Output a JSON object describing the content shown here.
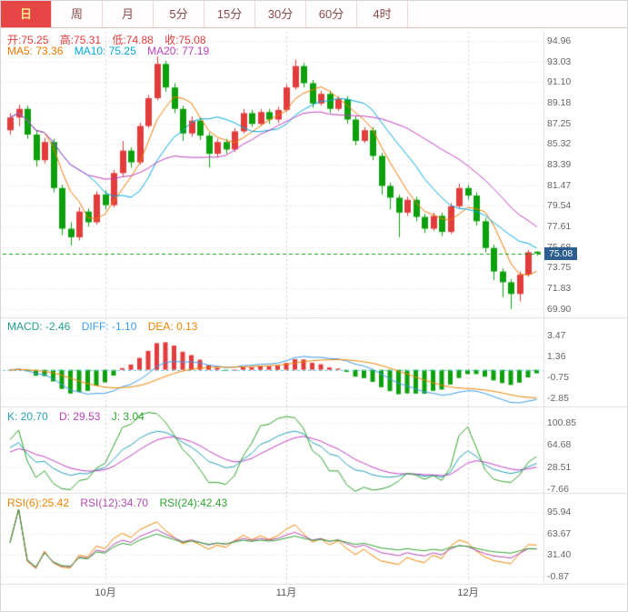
{
  "colors": {
    "up": "#e23c3c",
    "down": "#0ca00c",
    "ohlc_text": "#e23c3c",
    "ma5": "#f07800",
    "ma10": "#00aadf",
    "ma20": "#c03fc0",
    "macd_label": "#23a08c",
    "diff": "#3b9ded",
    "dea": "#f08300",
    "k": "#23a0b4",
    "dline": "#c03fc0",
    "j": "#2fa32f",
    "rsi6": "#f08300",
    "rsi12": "#b44ab4",
    "rsi24": "#2fa32f",
    "close_line": "#0ca00c",
    "zero_line": "#56c8e8",
    "price_tag_bg": "#2c5f8f",
    "tab_active_bg": "#e54545",
    "tab_active_text": "#ffe98a"
  },
  "tabs": [
    {
      "label": "日",
      "active": true
    },
    {
      "label": "周",
      "active": false
    },
    {
      "label": "月",
      "active": false
    },
    {
      "label": "5分",
      "active": false
    },
    {
      "label": "15分",
      "active": false
    },
    {
      "label": "30分",
      "active": false
    },
    {
      "label": "60分",
      "active": false
    },
    {
      "label": "4时",
      "active": false
    }
  ],
  "info_ohlc": [
    "开:75.25",
    "高:75.31",
    "低:74.88",
    "收:75.08"
  ],
  "info_ma": [
    "MA5: 73.36",
    "MA10: 75.25",
    "MA20: 77.19"
  ],
  "macd_header": [
    "MACD: -2.46",
    "DIFF: -1.10",
    "DEA: 0.13"
  ],
  "kdj_header": [
    "K: 20.70",
    "D: 29.53",
    "J: 3.04"
  ],
  "rsi_header": [
    "RSI(6):25.42",
    "RSI(12):34.70",
    "RSI(24):42.43"
  ],
  "price_tag": "75.08",
  "axes": {
    "main": [
      "94.96",
      "93.03",
      "91.10",
      "89.18",
      "87.25",
      "85.32",
      "83.39",
      "81.47",
      "79.54",
      "77.61",
      "75.68",
      "73.75",
      "71.83",
      "69.90"
    ],
    "macd": [
      "3.47",
      "1.36",
      "-0.75",
      "-2.85"
    ],
    "kdj": [
      "100.85",
      "64.68",
      "28.51",
      "-7.66"
    ],
    "rsi": [
      "95.94",
      "63.67",
      "31.40",
      "-0.87"
    ]
  },
  "x_labels": [
    {
      "text": "10月",
      "index": 11
    },
    {
      "text": "11月",
      "index": 32
    },
    {
      "text": "12月",
      "index": 53
    }
  ],
  "chart_data": {
    "type": "candlestick",
    "period": "daily",
    "last_bar": {
      "open": 75.25,
      "high": 75.31,
      "low": 74.88,
      "close": 75.08
    },
    "indicator_values": {
      "ma5": 73.36,
      "ma10": 75.25,
      "ma20": 77.19,
      "macd": -2.46,
      "diff": -1.1,
      "dea": 0.13,
      "k": 20.7,
      "d": 29.53,
      "j": 3.04,
      "rsi6": 25.42,
      "rsi12": 34.7,
      "rsi24": 42.43
    },
    "ma_periods": [
      5,
      10,
      20
    ],
    "macd_params": [
      12,
      26,
      9
    ],
    "kdj_params": [
      9,
      3,
      3
    ],
    "rsi_periods": [
      6,
      12,
      24
    ],
    "close_line": 75.08,
    "month_start_indices": [
      11,
      32,
      53
    ],
    "ylim": {
      "main": [
        69.2,
        95.8
      ],
      "macd": [
        -3.6,
        5.1
      ],
      "kdj": [
        -12.1,
        124.6
      ],
      "rsi": [
        -10.4,
        121.8
      ]
    },
    "candles": [
      [
        86.6,
        88.2,
        86.2,
        87.8
      ],
      [
        87.8,
        89.0,
        87.0,
        88.6
      ],
      [
        88.6,
        88.9,
        85.8,
        86.2
      ],
      [
        86.2,
        86.6,
        83.2,
        83.8
      ],
      [
        83.8,
        85.9,
        83.5,
        85.5
      ],
      [
        85.5,
        85.8,
        80.8,
        81.2
      ],
      [
        81.2,
        81.5,
        76.8,
        77.4
      ],
      [
        77.4,
        78.0,
        75.8,
        76.6
      ],
      [
        76.6,
        79.4,
        76.3,
        79.0
      ],
      [
        79.0,
        79.3,
        77.6,
        78.0
      ],
      [
        78.0,
        80.9,
        77.8,
        80.6
      ],
      [
        80.6,
        81.0,
        79.2,
        79.6
      ],
      [
        79.6,
        82.9,
        79.4,
        82.6
      ],
      [
        82.6,
        85.6,
        82.3,
        84.7
      ],
      [
        84.7,
        85.0,
        83.1,
        83.6
      ],
      [
        83.6,
        87.3,
        83.4,
        87.0
      ],
      [
        87.0,
        89.9,
        86.8,
        89.6
      ],
      [
        89.6,
        93.5,
        89.4,
        92.8
      ],
      [
        92.8,
        93.1,
        90.2,
        90.6
      ],
      [
        90.6,
        91.0,
        88.2,
        88.6
      ],
      [
        88.6,
        88.9,
        85.6,
        86.3
      ],
      [
        86.3,
        87.9,
        86.0,
        87.5
      ],
      [
        87.5,
        87.8,
        85.7,
        86.1
      ],
      [
        86.1,
        86.4,
        83.1,
        84.4
      ],
      [
        84.4,
        85.8,
        84.1,
        85.5
      ],
      [
        85.5,
        85.8,
        84.4,
        84.8
      ],
      [
        84.8,
        86.8,
        84.6,
        86.5
      ],
      [
        86.5,
        88.6,
        86.3,
        88.2
      ],
      [
        88.2,
        88.5,
        86.9,
        87.2
      ],
      [
        87.2,
        88.6,
        87.0,
        88.3
      ],
      [
        88.3,
        88.6,
        87.2,
        87.6
      ],
      [
        87.6,
        88.8,
        87.3,
        88.5
      ],
      [
        88.5,
        90.9,
        88.3,
        90.6
      ],
      [
        90.6,
        93.2,
        90.4,
        92.6
      ],
      [
        92.6,
        92.9,
        90.6,
        91.0
      ],
      [
        91.0,
        91.3,
        88.7,
        89.1
      ],
      [
        89.1,
        90.3,
        88.9,
        90.0
      ],
      [
        90.0,
        90.3,
        88.2,
        88.6
      ],
      [
        88.6,
        89.8,
        88.4,
        89.5
      ],
      [
        89.5,
        89.8,
        87.2,
        87.6
      ],
      [
        87.6,
        87.9,
        85.2,
        85.6
      ],
      [
        85.6,
        86.9,
        85.4,
        86.6
      ],
      [
        86.6,
        86.9,
        83.8,
        84.2
      ],
      [
        84.2,
        84.5,
        80.6,
        81.4
      ],
      [
        81.4,
        81.7,
        79.2,
        80.3
      ],
      [
        80.3,
        80.6,
        76.6,
        78.9
      ],
      [
        78.9,
        80.4,
        78.6,
        80.1
      ],
      [
        80.1,
        80.4,
        78.1,
        78.5
      ],
      [
        78.5,
        78.8,
        77.0,
        77.4
      ],
      [
        77.4,
        78.9,
        77.2,
        78.6
      ],
      [
        78.6,
        78.9,
        76.7,
        77.1
      ],
      [
        77.1,
        79.8,
        76.9,
        79.5
      ],
      [
        79.5,
        81.6,
        79.3,
        81.2
      ],
      [
        81.2,
        81.5,
        80.1,
        80.5
      ],
      [
        80.5,
        80.8,
        77.7,
        78.1
      ],
      [
        78.1,
        78.4,
        75.2,
        75.6
      ],
      [
        75.6,
        75.9,
        72.6,
        73.4
      ],
      [
        73.4,
        73.7,
        71.0,
        72.4
      ],
      [
        72.4,
        72.7,
        69.9,
        71.3
      ],
      [
        71.3,
        73.4,
        70.6,
        73.1
      ],
      [
        73.1,
        75.4,
        72.9,
        75.2
      ],
      [
        75.25,
        75.31,
        74.88,
        75.08
      ]
    ]
  }
}
